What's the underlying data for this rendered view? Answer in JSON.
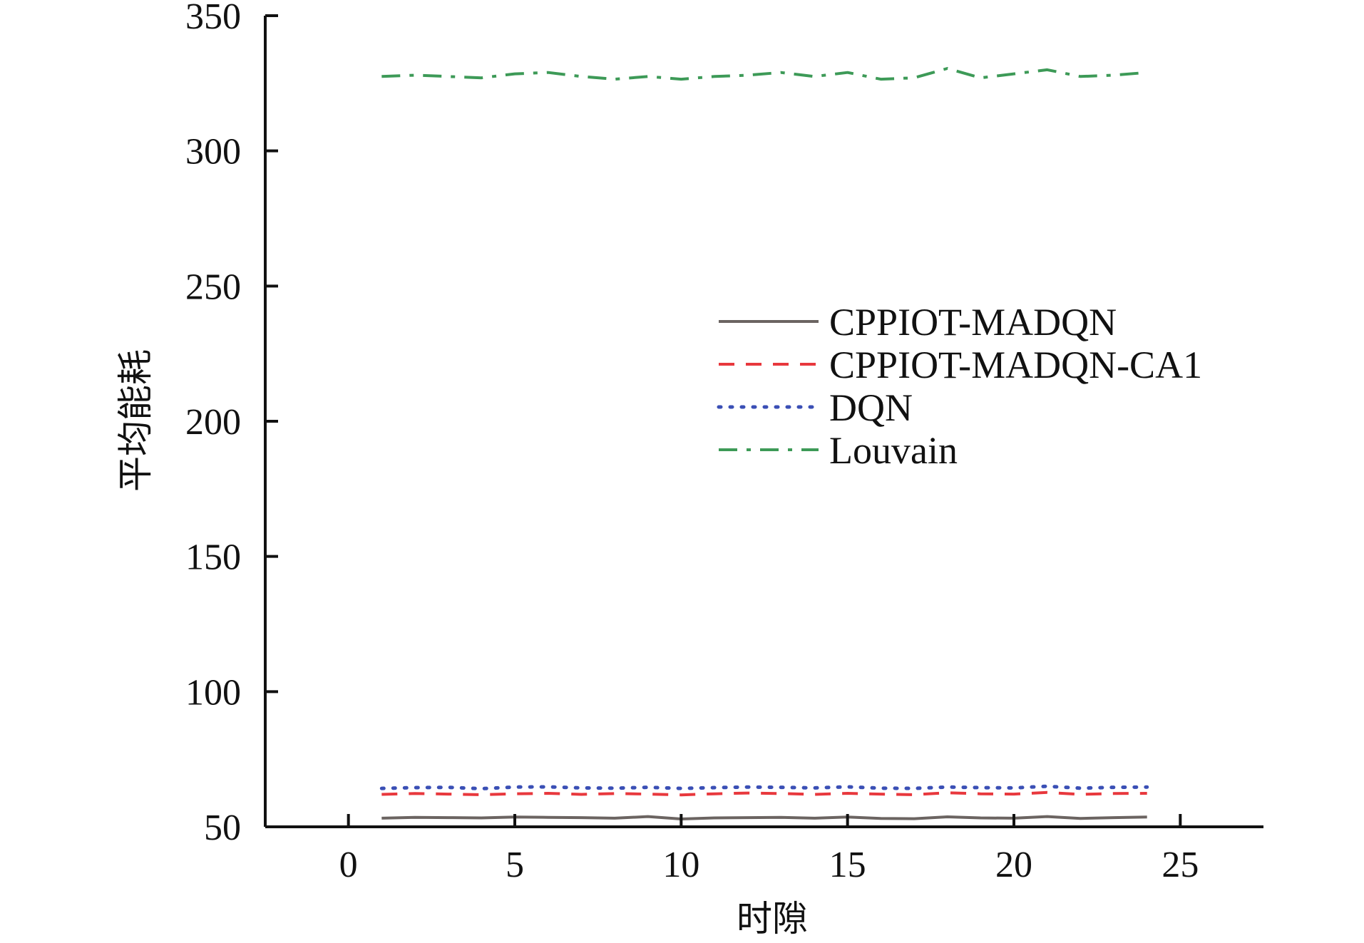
{
  "chart_data": {
    "type": "line",
    "xlabel": "时隙",
    "ylabel": "平均能耗",
    "xlim": [
      -2.5,
      27.5
    ],
    "ylim": [
      50,
      350
    ],
    "xticks": [
      "0",
      "5",
      "10",
      "15",
      "20",
      "25"
    ],
    "yticks": [
      "50",
      "100",
      "150",
      "200",
      "250",
      "300",
      "350"
    ],
    "x": [
      1,
      2,
      3,
      4,
      5,
      6,
      7,
      8,
      9,
      10,
      11,
      12,
      13,
      14,
      15,
      16,
      17,
      18,
      19,
      20,
      21,
      22,
      23,
      24
    ],
    "legend_position": "center-right",
    "grid": false,
    "series": [
      {
        "name": "CPPIOT-MADQN",
        "color": "#6b6461",
        "style": "solid",
        "values": [
          53.2,
          53.5,
          53.4,
          53.3,
          53.6,
          53.5,
          53.4,
          53.2,
          53.8,
          52.9,
          53.3,
          53.4,
          53.5,
          53.2,
          53.6,
          53.1,
          53.0,
          53.7,
          53.3,
          53.2,
          53.8,
          53.1,
          53.4,
          53.6
        ]
      },
      {
        "name": "CPPIOT-MADQN-CA1",
        "color": "#e8383d",
        "style": "dashed",
        "values": [
          62.0,
          62.3,
          62.1,
          61.9,
          62.2,
          62.4,
          62.0,
          62.3,
          62.1,
          61.8,
          62.2,
          62.5,
          62.3,
          62.0,
          62.4,
          62.1,
          61.9,
          62.6,
          62.2,
          62.1,
          62.7,
          62.0,
          62.3,
          62.4
        ]
      },
      {
        "name": "DQN",
        "color": "#3a4fb5",
        "style": "dotted",
        "values": [
          64.2,
          64.5,
          64.6,
          64.1,
          64.7,
          64.8,
          64.4,
          64.3,
          64.6,
          64.2,
          64.5,
          64.7,
          64.6,
          64.4,
          64.8,
          64.3,
          64.2,
          64.7,
          64.5,
          64.4,
          65.0,
          64.3,
          64.6,
          64.7
        ]
      },
      {
        "name": "Louvain",
        "color": "#3d9a57",
        "style": "dashdot",
        "values": [
          327.5,
          328.0,
          327.5,
          327.0,
          328.5,
          329.0,
          327.5,
          326.5,
          327.5,
          326.5,
          327.5,
          328.0,
          329.0,
          327.5,
          329.0,
          326.5,
          327.0,
          330.5,
          327.0,
          328.5,
          330.0,
          327.5,
          328.0,
          329.0
        ]
      }
    ]
  }
}
